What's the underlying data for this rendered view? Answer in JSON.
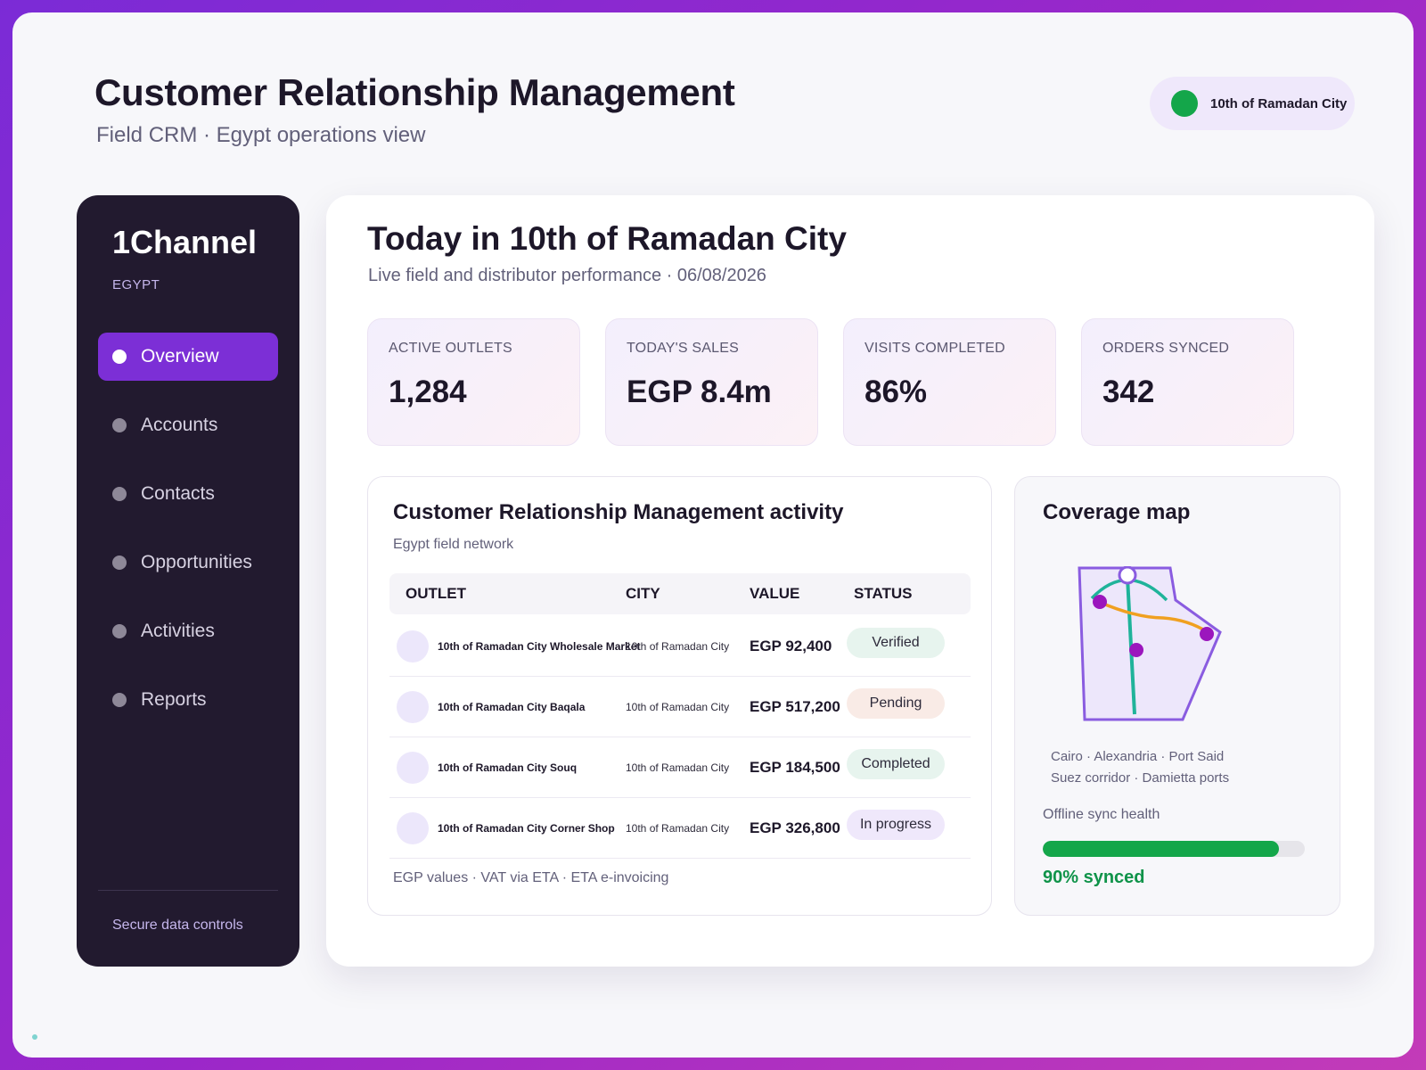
{
  "header": {
    "title": "Customer Relationship Management",
    "subtitle": "Field CRM · Egypt operations view",
    "location": "10th of Ramadan City"
  },
  "sidebar": {
    "brand": "1Channel",
    "region": "EGYPT",
    "items": [
      {
        "label": "Overview",
        "active": true
      },
      {
        "label": "Accounts",
        "active": false
      },
      {
        "label": "Contacts",
        "active": false
      },
      {
        "label": "Opportunities",
        "active": false
      },
      {
        "label": "Activities",
        "active": false
      },
      {
        "label": "Reports",
        "active": false
      }
    ],
    "footer": "Secure data controls"
  },
  "main": {
    "title": "Today in 10th of Ramadan City",
    "subtitle": "Live field and distributor performance · 06/08/2026",
    "kpis": [
      {
        "label": "ACTIVE OUTLETS",
        "value": "1,284"
      },
      {
        "label": "TODAY'S SALES",
        "value": "EGP 8.4m"
      },
      {
        "label": "VISITS COMPLETED",
        "value": "86%"
      },
      {
        "label": "ORDERS SYNCED",
        "value": "342"
      }
    ]
  },
  "activity": {
    "title": "Customer Relationship Management activity",
    "subtitle": "Egypt field network",
    "columns": [
      "OUTLET",
      "CITY",
      "VALUE",
      "STATUS"
    ],
    "rows": [
      {
        "outlet": "10th of Ramadan City Wholesale Market",
        "city": "10th of Ramadan City",
        "value": "EGP 92,400",
        "status": "Verified"
      },
      {
        "outlet": "10th of Ramadan City Baqala",
        "city": "10th of Ramadan City",
        "value": "EGP 517,200",
        "status": "Pending"
      },
      {
        "outlet": "10th of Ramadan City Souq",
        "city": "10th of Ramadan City",
        "value": "EGP 184,500",
        "status": "Completed"
      },
      {
        "outlet": "10th of Ramadan City Corner Shop",
        "city": "10th of Ramadan City",
        "value": "EGP 326,800",
        "status": "In progress"
      }
    ],
    "footnote": "EGP values · VAT via ETA · ETA e-invoicing"
  },
  "coverage": {
    "title": "Coverage map",
    "caption_line1": "Cairo · Alexandria · Port Said",
    "caption_line2": "Suez corridor · Damietta ports",
    "sync_label": "Offline sync health",
    "sync_fraction": 0.9,
    "sync_value": "90% synced"
  },
  "colors": {
    "accent": "#7c2fd6",
    "success": "#14a64a",
    "sidebar_bg": "#221a2f",
    "route_teal": "#1fb39a",
    "route_orange": "#f0a020"
  }
}
